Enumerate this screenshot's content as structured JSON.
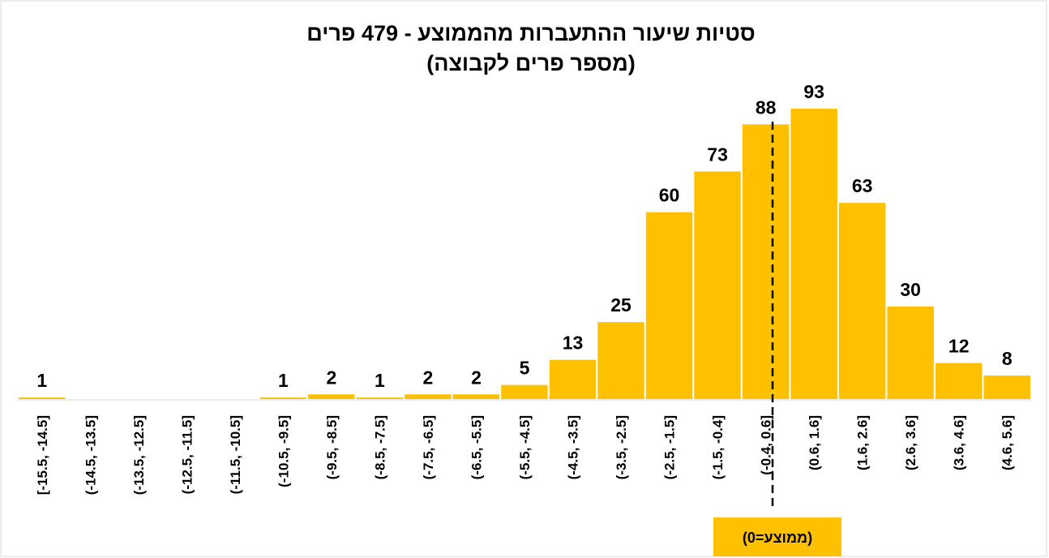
{
  "chart_data": {
    "type": "bar",
    "title": "סטיות שיעור ההתעברות מהממוצע - 479 פרים",
    "subtitle": "(מספר פרים לקבוצה)",
    "annotation": "(ממוצע=0)",
    "categories": [
      "[-15.5, -14.5]",
      "(-14.5, -13.5]",
      "(-13.5, -12.5]",
      "(-12.5, -11.5]",
      "(-11.5, -10.5]",
      "(-10.5, -9.5]",
      "(-9.5, -8.5]",
      "(-8.5, -7.5]",
      "(-7.5, -6.5]",
      "(-6.5, -5.5]",
      "(-5.5, -4.5]",
      "(-4.5, -3.5]",
      "(-3.5, -2.5]",
      "(-2.5, -1.5]",
      "(-1.5, -0.4]",
      "(-0.4, 0.6]",
      "(0.6, 1.6]",
      "(1.6, 2.6]",
      "(2.6, 3.6]",
      "(3.6, 4.6]",
      "(4.6, 5.6]"
    ],
    "values": [
      1,
      0,
      0,
      0,
      0,
      1,
      2,
      1,
      2,
      2,
      5,
      13,
      25,
      60,
      73,
      88,
      93,
      63,
      30,
      12,
      8
    ],
    "value_labels": [
      "1",
      null,
      null,
      null,
      null,
      "1",
      "2",
      "1",
      "2",
      "2",
      "5",
      "13",
      "25",
      "60",
      "73",
      "88",
      "93",
      "63",
      "30",
      "12",
      "8"
    ],
    "color": "#FFC000"
  }
}
